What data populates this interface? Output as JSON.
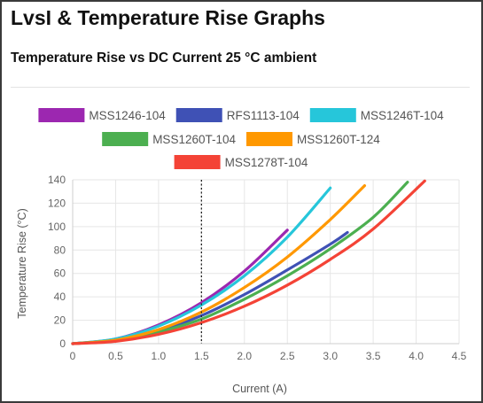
{
  "page": {
    "title": "LvsI & Temperature Rise Graphs",
    "subtitle": "Temperature Rise vs DC Current 25 °C ambient"
  },
  "chart_data": {
    "type": "line",
    "xlabel": "Current (A)",
    "ylabel": "Temperature Rise (°C)",
    "xlim": [
      0,
      4.5
    ],
    "ylim": [
      0,
      140
    ],
    "xticks": [
      "0",
      "0.5",
      "1.0",
      "1.5",
      "2.0",
      "2.5",
      "3.0",
      "3.5",
      "4.0",
      "4.5"
    ],
    "yticks": [
      "0",
      "20",
      "40",
      "60",
      "80",
      "100",
      "120",
      "140"
    ],
    "grid": true,
    "legend_position": "top",
    "marker_line": {
      "x": 1.5,
      "style": "dotted"
    },
    "series": [
      {
        "name": "MSS1246-104",
        "color": "#9c27b0",
        "x": [
          0,
          0.5,
          1.0,
          1.5,
          2.0,
          2.5
        ],
        "y": [
          0,
          4,
          16,
          35,
          62,
          97
        ]
      },
      {
        "name": "RFS1113-104",
        "color": "#3f51b5",
        "x": [
          0,
          0.5,
          1.0,
          1.5,
          2.0,
          2.5,
          3.0,
          3.2
        ],
        "y": [
          0,
          3,
          11,
          24,
          42,
          63,
          85,
          95
        ]
      },
      {
        "name": "MSS1246T-104",
        "color": "#26c6da",
        "x": [
          0,
          0.5,
          1.0,
          1.5,
          2.0,
          2.5,
          3.0
        ],
        "y": [
          0,
          4,
          15,
          33,
          58,
          91,
          133
        ]
      },
      {
        "name": "MSS1260T-104",
        "color": "#4caf50",
        "x": [
          0,
          0.5,
          1.0,
          1.5,
          2.0,
          2.5,
          3.0,
          3.5,
          3.9
        ],
        "y": [
          0,
          3,
          10,
          21,
          38,
          58,
          81,
          108,
          138
        ]
      },
      {
        "name": "MSS1260T-124",
        "color": "#ff9800",
        "x": [
          0,
          0.5,
          1.0,
          1.5,
          2.0,
          2.5,
          3.0,
          3.4
        ],
        "y": [
          0,
          3,
          12,
          27,
          48,
          74,
          106,
          135
        ]
      },
      {
        "name": "MSS1278T-104",
        "color": "#f44336",
        "x": [
          0,
          0.5,
          1.0,
          1.5,
          2.0,
          2.5,
          3.0,
          3.5,
          4.1
        ],
        "y": [
          0,
          2,
          8,
          18,
          32,
          50,
          72,
          98,
          139
        ]
      }
    ]
  }
}
